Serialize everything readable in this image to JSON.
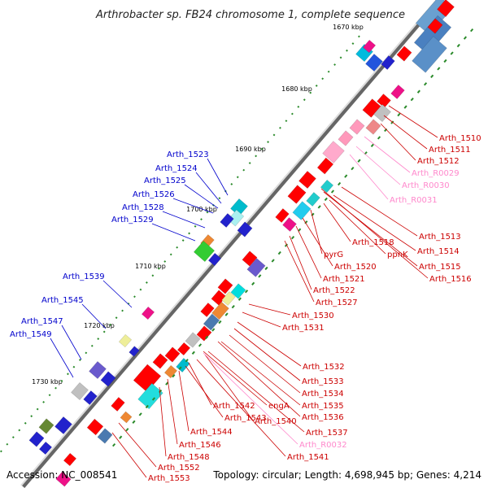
{
  "title": "Arthrobacter sp. FB24 chromosome 1, complete sequence",
  "footer": {
    "accession": "Accession: NC_008541",
    "summary": "Topology: circular; Length: 4,698,945 bp; Genes: 4,214"
  },
  "colors": {
    "backbone": "#888888",
    "forward": "#ff0000",
    "reverse": "#0000cc",
    "rna": "#ff88bb",
    "label_forward": "#cc0000",
    "label_reverse": "#0000cc",
    "label_rna": "#ff88cc"
  },
  "scale_ticks": [
    "1670 kbp",
    "1680 kbp",
    "1690 kbp",
    "1700 kbp",
    "1710 kbp",
    "1720 kbp",
    "1730 kbp"
  ],
  "labels_right": [
    {
      "text": "Arth_1510",
      "kind": "forward"
    },
    {
      "text": "Arth_1511",
      "kind": "forward"
    },
    {
      "text": "Arth_1512",
      "kind": "forward"
    },
    {
      "text": "Arth_R0029",
      "kind": "rna"
    },
    {
      "text": "Arth_R0030",
      "kind": "rna"
    },
    {
      "text": "Arth_R0031",
      "kind": "rna"
    },
    {
      "text": "Arth_1513",
      "kind": "forward"
    },
    {
      "text": "Arth_1518",
      "kind": "forward"
    },
    {
      "text": "Arth_1514",
      "kind": "forward"
    },
    {
      "text": "pyrG",
      "kind": "forward"
    },
    {
      "text": "ppnK",
      "kind": "forward"
    },
    {
      "text": "Arth_1515",
      "kind": "forward"
    },
    {
      "text": "Arth_1520",
      "kind": "forward"
    },
    {
      "text": "Arth_1516",
      "kind": "forward"
    },
    {
      "text": "Arth_1521",
      "kind": "forward"
    },
    {
      "text": "Arth_1522",
      "kind": "forward"
    },
    {
      "text": "Arth_1527",
      "kind": "forward"
    },
    {
      "text": "Arth_1530",
      "kind": "forward"
    },
    {
      "text": "Arth_1531",
      "kind": "forward"
    },
    {
      "text": "Arth_1532",
      "kind": "forward"
    },
    {
      "text": "Arth_1533",
      "kind": "forward"
    },
    {
      "text": "Arth_1534",
      "kind": "forward"
    },
    {
      "text": "Arth_1535",
      "kind": "forward"
    },
    {
      "text": "engA",
      "kind": "forward"
    },
    {
      "text": "Arth_1542",
      "kind": "forward"
    },
    {
      "text": "Arth_1536",
      "kind": "forward"
    },
    {
      "text": "Arth_1543",
      "kind": "forward"
    },
    {
      "text": "Arth_1540",
      "kind": "forward"
    },
    {
      "text": "Arth_1544",
      "kind": "forward"
    },
    {
      "text": "Arth_1537",
      "kind": "forward"
    },
    {
      "text": "Arth_1546",
      "kind": "forward"
    },
    {
      "text": "Arth_R0032",
      "kind": "rna"
    },
    {
      "text": "Arth_1548",
      "kind": "forward"
    },
    {
      "text": "Arth_1541",
      "kind": "forward"
    },
    {
      "text": "Arth_1552",
      "kind": "forward"
    },
    {
      "text": "Arth_1553",
      "kind": "forward"
    }
  ],
  "labels_left": [
    {
      "text": "Arth_1523",
      "kind": "reverse"
    },
    {
      "text": "Arth_1524",
      "kind": "reverse"
    },
    {
      "text": "Arth_1525",
      "kind": "reverse"
    },
    {
      "text": "Arth_1526",
      "kind": "reverse"
    },
    {
      "text": "Arth_1528",
      "kind": "reverse"
    },
    {
      "text": "Arth_1529",
      "kind": "reverse"
    },
    {
      "text": "Arth_1539",
      "kind": "reverse"
    },
    {
      "text": "Arth_1545",
      "kind": "reverse"
    },
    {
      "text": "Arth_1547",
      "kind": "reverse"
    },
    {
      "text": "Arth_1549",
      "kind": "reverse"
    }
  ]
}
